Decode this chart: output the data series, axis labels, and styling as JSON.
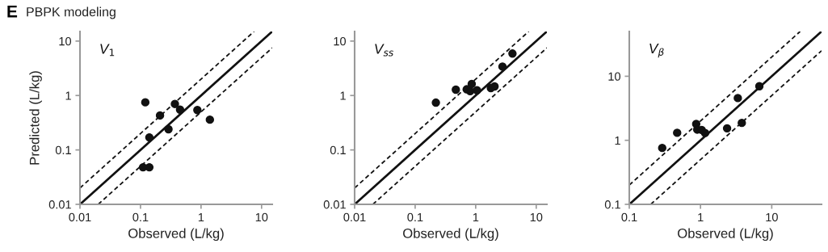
{
  "chart_data": [
    {
      "type": "scatter",
      "title": "E PBPK modeling",
      "xlabel": "Observed (L/kg)",
      "ylabel": "Predicted (L/kg)",
      "annotations": [
        "V$_{1}$"
      ],
      "log": "xy",
      "xlim": [
        0.01,
        15
      ],
      "ylim": [
        0.01,
        15
      ],
      "xticks": [
        0.01,
        0.1,
        1,
        10
      ],
      "yticks": [
        0.01,
        0.1,
        1,
        10
      ],
      "series": [
        {
          "type": "line",
          "color": "#111111",
          "line_style": "solid",
          "marker": "none",
          "x": [
            0.01,
            15
          ],
          "values": [
            0.01,
            15
          ]
        },
        {
          "type": "line",
          "color": "#111111",
          "line_style": "dashed",
          "marker": "none",
          "x": [
            0.01,
            7.5
          ],
          "values": [
            0.02,
            15
          ]
        },
        {
          "type": "line",
          "color": "#111111",
          "line_style": "dashed",
          "marker": "none",
          "x": [
            0.02,
            15
          ],
          "values": [
            0.01,
            7.5
          ]
        },
        {
          "type": "scatter",
          "color": "#111111",
          "marker": "circle",
          "x": [
            0.12,
            0.21,
            0.37,
            0.45,
            0.87,
            1.4,
            0.29,
            0.14,
            0.11,
            0.14
          ],
          "values": [
            0.75,
            0.43,
            0.7,
            0.55,
            0.54,
            0.36,
            0.24,
            0.17,
            0.048,
            0.048
          ]
        }
      ]
    },
    {
      "type": "scatter",
      "xlabel": "Observed (L/kg)",
      "annotations": [
        "V$_{ss}$"
      ],
      "log": "xy",
      "xlim": [
        0.01,
        15
      ],
      "ylim": [
        0.01,
        15
      ],
      "xticks": [
        0.01,
        0.1,
        1,
        10
      ],
      "yticks": [
        0.01,
        0.1,
        1,
        10
      ],
      "series": [
        {
          "type": "line",
          "color": "#111111",
          "line_style": "solid",
          "marker": "none",
          "x": [
            0.01,
            15
          ],
          "values": [
            0.01,
            15
          ]
        },
        {
          "type": "line",
          "color": "#111111",
          "line_style": "dashed",
          "marker": "none",
          "x": [
            0.01,
            7.5
          ],
          "values": [
            0.02,
            15
          ]
        },
        {
          "type": "line",
          "color": "#111111",
          "line_style": "dashed",
          "marker": "none",
          "x": [
            0.02,
            15
          ],
          "values": [
            0.01,
            7.5
          ]
        },
        {
          "type": "scatter",
          "color": "#111111",
          "marker": "circle",
          "x": [
            0.22,
            0.47,
            0.71,
            0.81,
            0.86,
            1.05,
            1.78,
            2.05,
            2.77,
            4.05
          ],
          "values": [
            0.74,
            1.28,
            1.3,
            1.2,
            1.63,
            1.25,
            1.37,
            1.47,
            3.4,
            5.9
          ]
        }
      ]
    },
    {
      "type": "scatter",
      "xlabel": "Observed (L/kg)",
      "annotations": [
        "V$_{β}$"
      ],
      "log": "xy",
      "xlim": [
        0.1,
        50
      ],
      "ylim": [
        0.1,
        50
      ],
      "xticks": [
        0.1,
        1,
        10
      ],
      "yticks": [
        0.1,
        1,
        10
      ],
      "series": [
        {
          "type": "line",
          "color": "#111111",
          "line_style": "solid",
          "marker": "none",
          "x": [
            0.1,
            50
          ],
          "values": [
            0.1,
            50
          ]
        },
        {
          "type": "line",
          "color": "#111111",
          "line_style": "dashed",
          "marker": "none",
          "x": [
            0.1,
            25
          ],
          "values": [
            0.2,
            50
          ]
        },
        {
          "type": "line",
          "color": "#111111",
          "line_style": "dashed",
          "marker": "none",
          "x": [
            0.2,
            50
          ],
          "values": [
            0.1,
            25
          ]
        },
        {
          "type": "scatter",
          "color": "#111111",
          "marker": "circle",
          "x": [
            0.29,
            0.47,
            0.87,
            0.9,
            1.04,
            1.16,
            2.36,
            3.34,
            3.8,
            6.7
          ],
          "values": [
            0.76,
            1.31,
            1.8,
            1.47,
            1.45,
            1.3,
            1.54,
            4.57,
            1.87,
            7.0
          ]
        }
      ]
    }
  ]
}
